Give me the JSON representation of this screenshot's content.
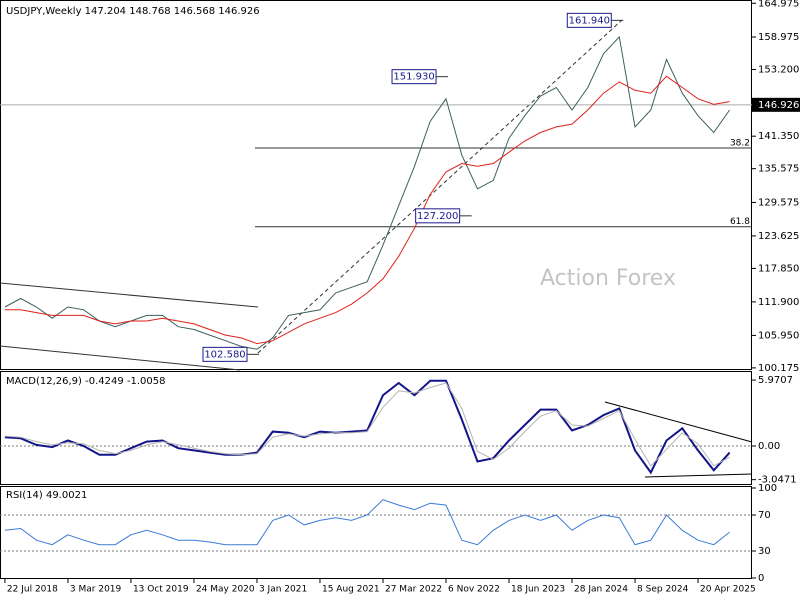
{
  "chart_data": [
    {
      "type": "line",
      "title": "USDJPY,Weekly  147.204 148.768 146.568 146.926",
      "watermark": "Action Forex",
      "x": [
        0,
        8,
        16,
        24,
        32,
        40,
        48,
        56,
        64,
        72,
        80,
        88,
        96,
        104,
        112,
        120,
        128,
        136,
        144,
        152,
        160,
        168,
        176,
        184,
        192,
        200,
        208,
        216,
        224,
        232,
        240,
        248,
        256,
        264,
        272,
        280,
        288,
        296,
        304,
        312,
        320,
        328,
        336,
        344,
        352,
        360,
        368
      ],
      "xlim": [
        -2.5,
        379.4
      ],
      "ylim": [
        99.8,
        165.2
      ],
      "yticks": [
        164.975,
        158.975,
        {
          "value": 153.2,
          "label": "153.200"
        },
        {
          "value": 141.35,
          "label": "141.350"
        },
        135.575,
        129.575,
        123.625,
        {
          "value": 117.85,
          "label": "117.850"
        },
        {
          "value": 111.9,
          "label": "111.900"
        },
        {
          "value": 105.95,
          "label": "105.950"
        },
        100.175
      ],
      "last_price": 146.926,
      "series": [
        {
          "name": "Close",
          "color": "#3e5e5e",
          "values": [
            111,
            112.5,
            111,
            109,
            111,
            110.5,
            108.5,
            107.5,
            108.5,
            109.5,
            109.5,
            107.5,
            107,
            106,
            105,
            104,
            103.5,
            105.5,
            109.5,
            110,
            110.5,
            113.5,
            114.5,
            115.5,
            122,
            129,
            136,
            144,
            148,
            138,
            132,
            133.5,
            141,
            145,
            148.5,
            150,
            146,
            150,
            156,
            159,
            143,
            146,
            155,
            149,
            145,
            142,
            146
          ]
        },
        {
          "name": "MA",
          "color": "#e0201a",
          "values": [
            110.5,
            110.5,
            110,
            109.5,
            109.5,
            109.5,
            108.5,
            108,
            108.5,
            108.5,
            109,
            108.5,
            108,
            107,
            106,
            105.5,
            104.5,
            105,
            106.5,
            108,
            109,
            110,
            111.5,
            113.5,
            116,
            120,
            125,
            131,
            135,
            136.5,
            136,
            136.5,
            138.5,
            140.5,
            142,
            143,
            143.5,
            146,
            149,
            151,
            149.5,
            149,
            152,
            150,
            148,
            147,
            147.5
          ]
        }
      ],
      "annotations": [
        {
          "label": "161.940",
          "value": 161.94,
          "x": 312
        },
        {
          "label": "151.930",
          "value": 151.93,
          "x": 223
        },
        {
          "label": "127.200",
          "value": 127.2,
          "x": 235
        },
        {
          "label": "102.580",
          "value": 102.58,
          "x": 127
        }
      ],
      "fib_levels": [
        {
          "label": "38.2",
          "value": 139.26
        },
        {
          "label": "61.8",
          "value": 125.26
        }
      ]
    },
    {
      "type": "line",
      "title": "MACD(12,26,9) -0.4249 -1.0058",
      "ylim": [
        -3.53,
        6.7
      ],
      "yticks": [
        5.9707,
        {
          "value": 0,
          "label": "0.00"
        },
        -3.0471
      ],
      "series": [
        {
          "name": "MACD",
          "color": "#14148a",
          "values": [
            0.8,
            0.7,
            0.1,
            -0.1,
            0.5,
            0,
            -0.8,
            -0.8,
            -0.2,
            0.4,
            0.5,
            -0.2,
            -0.4,
            -0.6,
            -0.8,
            -0.8,
            -0.6,
            1.3,
            1.2,
            0.8,
            1.3,
            1.2,
            1.3,
            1.4,
            4.6,
            5.7,
            4.6,
            5.9,
            5.9,
            2.4,
            -1.4,
            -1.1,
            0.5,
            1.9,
            3.3,
            3.3,
            1.4,
            1.9,
            2.8,
            3.4,
            -0.4,
            -2.4,
            0.5,
            1.6,
            -0.4,
            -2.2,
            -0.6
          ]
        },
        {
          "name": "Signal",
          "color": "#b4b4b4",
          "values": [
            0.9,
            0.8,
            0.4,
            0.1,
            0.3,
            0.2,
            -0.4,
            -0.7,
            -0.4,
            0.1,
            0.4,
            0.1,
            -0.2,
            -0.5,
            -0.7,
            -0.8,
            -0.7,
            0.8,
            1.1,
            0.9,
            1.1,
            1.2,
            1.2,
            1.3,
            3.5,
            5.0,
            4.8,
            5.3,
            5.7,
            3.4,
            -0.5,
            -1.2,
            -0.2,
            1.3,
            2.7,
            3.2,
            1.9,
            1.8,
            2.5,
            3.2,
            0.6,
            -1.8,
            -0.3,
            1.2,
            0.2,
            -1.8,
            -1.0
          ]
        }
      ]
    },
    {
      "type": "line",
      "title": "RSI(14) 49.0021",
      "ylim": [
        0,
        100
      ],
      "yticks": [
        100,
        70,
        30,
        0
      ],
      "levels": [
        70,
        30
      ],
      "series": [
        {
          "name": "RSI",
          "color": "#3c7ad8",
          "values": [
            53,
            55,
            42,
            37,
            48,
            42,
            37,
            37,
            48,
            53,
            48,
            42,
            42,
            40,
            37,
            37,
            37,
            64,
            70,
            59,
            64,
            67,
            64,
            70,
            87,
            81,
            76,
            83,
            81,
            42,
            37,
            53,
            64,
            70,
            64,
            70,
            53,
            64,
            70,
            67,
            37,
            42,
            70,
            53,
            42,
            37,
            51
          ]
        }
      ],
      "xticks": [
        {
          "value": 0,
          "label": "22 Jul 2018"
        },
        {
          "value": 32,
          "label": "3 Mar 2019"
        },
        {
          "value": 64,
          "label": "13 Oct 2019"
        },
        {
          "value": 96,
          "label": "24 May 2020"
        },
        {
          "value": 128,
          "label": "3 Jan 2021"
        },
        {
          "value": 160,
          "label": "15 Aug 2021"
        },
        {
          "value": 192,
          "label": "27 Mar 2022"
        },
        {
          "value": 224,
          "label": "6 Nov 2022"
        },
        {
          "value": 256,
          "label": "18 Jun 2023"
        },
        {
          "value": 288,
          "label": "28 Jan 2024"
        },
        {
          "value": 320,
          "label": "8 Sep 2024"
        },
        {
          "value": 352,
          "label": "20 Apr 2025"
        }
      ]
    }
  ]
}
